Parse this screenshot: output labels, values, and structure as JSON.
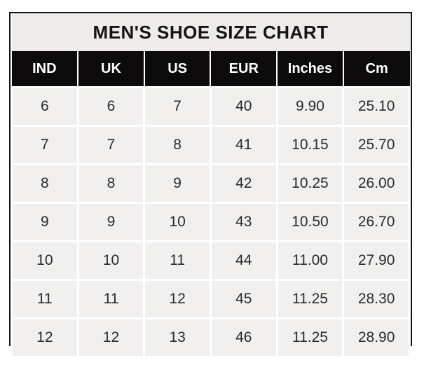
{
  "title": "MEN'S SHOE SIZE CHART",
  "chart_data": {
    "type": "table",
    "title": "MEN'S SHOE SIZE CHART",
    "columns": [
      "IND",
      "UK",
      "US",
      "EUR",
      "Inches",
      "Cm"
    ],
    "rows": [
      [
        "6",
        "6",
        "7",
        "40",
        "9.90",
        "25.10"
      ],
      [
        "7",
        "7",
        "8",
        "41",
        "10.15",
        "25.70"
      ],
      [
        "8",
        "8",
        "9",
        "42",
        "10.25",
        "26.00"
      ],
      [
        "9",
        "9",
        "10",
        "43",
        "10.50",
        "26.70"
      ],
      [
        "10",
        "10",
        "11",
        "44",
        "11.00",
        "27.90"
      ],
      [
        "11",
        "11",
        "12",
        "45",
        "11.25",
        "28.30"
      ],
      [
        "12",
        "12",
        "13",
        "46",
        "11.25",
        "28.90"
      ]
    ]
  },
  "colors": {
    "page_bg": "#ffffff",
    "frame_border": "#131313",
    "title_bg": "#edecea",
    "header_bg": "#0d0a0b",
    "header_text": "#ffffff",
    "cell_bg": "#f1f0ee",
    "cell_text": "#2b2b2b",
    "gridline": "#ffffff"
  }
}
